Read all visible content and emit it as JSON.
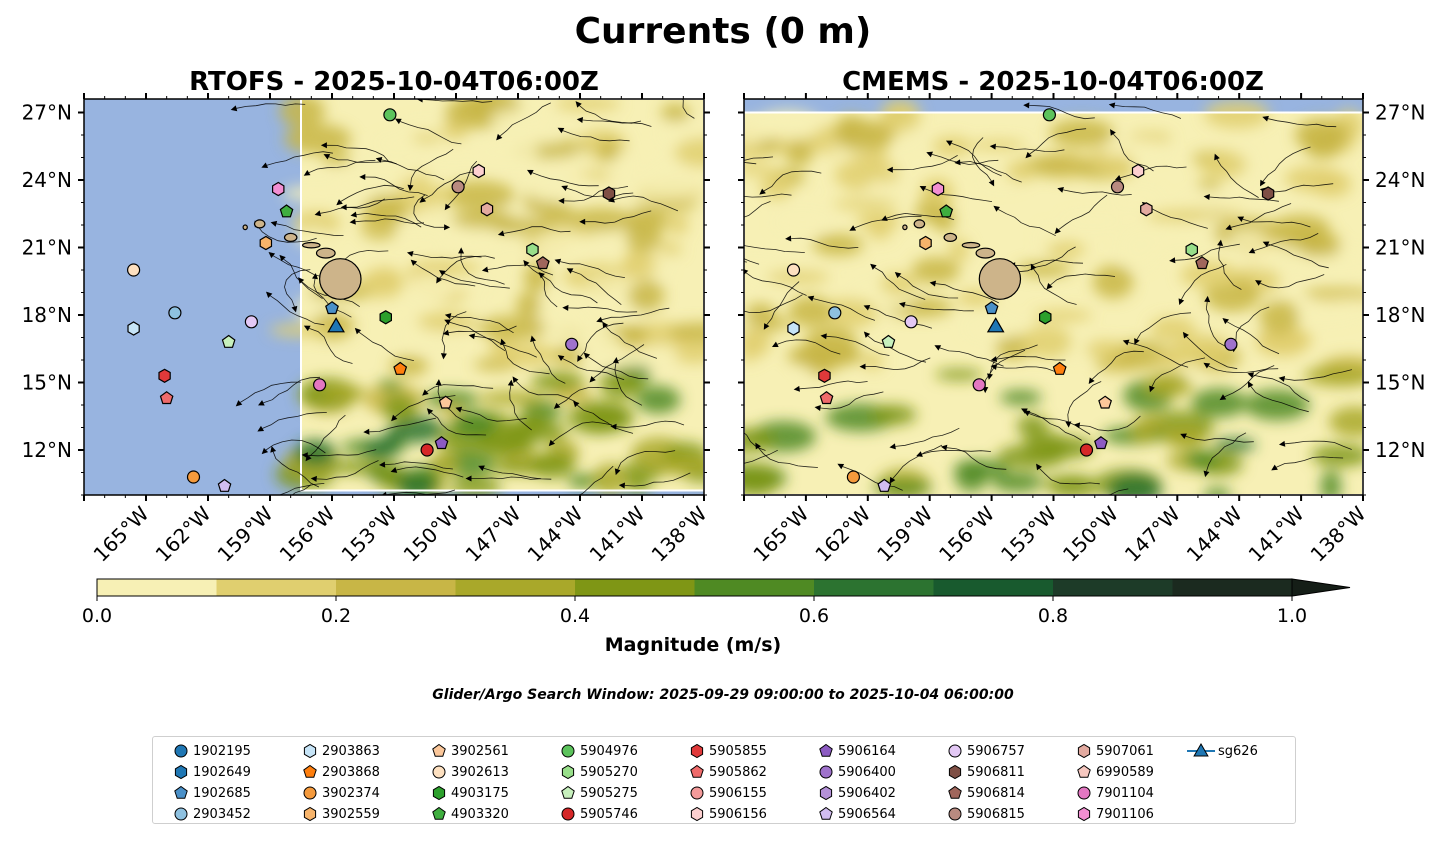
{
  "figure": {
    "suptitle": "Currents (0 m)",
    "subtitle": "Glider/Argo Search Window: 2025-09-29 09:00:00 to 2025-10-04 06:00:00"
  },
  "chart_data": {
    "type": "heatmap",
    "panels": [
      {
        "title": "RTOFS - 2025-10-04T06:00Z",
        "model_extent_lon_west": -157.5,
        "model_south_lat": 10.2
      },
      {
        "title": "CMEMS - 2025-10-04T06:00Z",
        "model_extent_lon_west": -168.0,
        "model_north_lat": 27.0
      }
    ],
    "extent": {
      "lon": [
        -168,
        -138
      ],
      "lat": [
        10.0,
        27.6
      ]
    },
    "xticks": [
      -165,
      -162,
      -159,
      -156,
      -153,
      -150,
      -147,
      -144,
      -141,
      -138
    ],
    "xtick_labels": [
      "165°W",
      "162°W",
      "159°W",
      "156°W",
      "153°W",
      "150°W",
      "147°W",
      "144°W",
      "141°W",
      "138°W"
    ],
    "yticks": [
      12,
      15,
      18,
      21,
      24,
      27
    ],
    "ytick_labels": [
      "12°N",
      "15°N",
      "18°N",
      "21°N",
      "24°N",
      "27°N"
    ],
    "colorbar": {
      "label": "Magnitude (m/s)",
      "levels": [
        0.0,
        0.1,
        0.2,
        0.3,
        0.4,
        0.5,
        0.6,
        0.7,
        0.8,
        0.9,
        1.0
      ],
      "tick_values": [
        0.0,
        0.2,
        0.4,
        0.6,
        0.8,
        1.0
      ],
      "tick_labels": [
        "0.0",
        "0.2",
        "0.4",
        "0.6",
        "0.8",
        "1.0"
      ],
      "colors": [
        "#f7f0b5",
        "#e0cf6f",
        "#c8b646",
        "#a9a82a",
        "#7f9615",
        "#4f8a23",
        "#2c7330",
        "#185a2e",
        "#1d3b28",
        "#1b2a1f"
      ],
      "extend": "max"
    },
    "land_color": "#cdb48a",
    "nodata_color": "#98b4e0",
    "markers": [
      {
        "name": "1902195",
        "lon": null,
        "lat": null
      },
      {
        "name": "1902649",
        "lon": null,
        "lat": null
      },
      {
        "name": "1902685",
        "lon": -156.0,
        "lat": 18.3
      },
      {
        "name": "2903452",
        "lon": -163.6,
        "lat": 18.1
      },
      {
        "name": "2903863",
        "lon": -165.6,
        "lat": 17.4
      },
      {
        "name": "2903868",
        "lon": -152.7,
        "lat": 15.6
      },
      {
        "name": "3902374",
        "lon": -162.7,
        "lat": 10.8
      },
      {
        "name": "3902559",
        "lon": -159.2,
        "lat": 21.2
      },
      {
        "name": "3902561",
        "lon": -150.5,
        "lat": 14.1
      },
      {
        "name": "3902613",
        "lon": -165.6,
        "lat": 20.0
      },
      {
        "name": "4903175",
        "lon": -153.4,
        "lat": 17.9
      },
      {
        "name": "4903320",
        "lon": -158.2,
        "lat": 22.6
      },
      {
        "name": "5904976",
        "lon": -153.2,
        "lat": 26.9
      },
      {
        "name": "5905270",
        "lon": -146.3,
        "lat": 20.9
      },
      {
        "name": "5905275",
        "lon": -161.0,
        "lat": 16.8
      },
      {
        "name": "5905746",
        "lon": -151.4,
        "lat": 12.0
      },
      {
        "name": "5905855",
        "lon": -164.1,
        "lat": 15.3
      },
      {
        "name": "5905862",
        "lon": -164.0,
        "lat": 14.3
      },
      {
        "name": "5906155",
        "lon": null,
        "lat": null
      },
      {
        "name": "5906156",
        "lon": -148.9,
        "lat": 24.4
      },
      {
        "name": "5906164",
        "lon": -150.7,
        "lat": 12.3
      },
      {
        "name": "5906400",
        "lon": -144.4,
        "lat": 16.7
      },
      {
        "name": "5906402",
        "lon": null,
        "lat": null
      },
      {
        "name": "5906564",
        "lon": -161.2,
        "lat": 10.4
      },
      {
        "name": "5906757",
        "lon": -159.9,
        "lat": 17.7
      },
      {
        "name": "5906811",
        "lon": -142.6,
        "lat": 23.4
      },
      {
        "name": "5906814",
        "lon": -145.8,
        "lat": 20.3
      },
      {
        "name": "5906815",
        "lon": -149.9,
        "lat": 23.7
      },
      {
        "name": "5907061",
        "lon": -148.5,
        "lat": 22.7
      },
      {
        "name": "6990589",
        "lon": null,
        "lat": null
      },
      {
        "name": "7901104",
        "lon": -156.6,
        "lat": 14.9
      },
      {
        "name": "7901106",
        "lon": -158.6,
        "lat": 23.6
      },
      {
        "name": "sg626",
        "lon": -155.8,
        "lat": 17.5
      }
    ]
  },
  "legend": {
    "columns": [
      [
        {
          "label": "1902195",
          "shape": "circle",
          "color": "#1f77b4"
        },
        {
          "label": "1902649",
          "shape": "hexagon",
          "color": "#1f77b4"
        },
        {
          "label": "1902685",
          "shape": "pentagon",
          "color": "#4a90c8"
        },
        {
          "label": "2903452",
          "shape": "circle",
          "color": "#8ec1e0"
        }
      ],
      [
        {
          "label": "2903863",
          "shape": "hexagon",
          "color": "#c6e4f7"
        },
        {
          "label": "2903868",
          "shape": "pentagon",
          "color": "#ff7f0e"
        },
        {
          "label": "3902374",
          "shape": "circle",
          "color": "#f59a3c"
        },
        {
          "label": "3902559",
          "shape": "hexagon",
          "color": "#f7b46b"
        }
      ],
      [
        {
          "label": "3902561",
          "shape": "pentagon",
          "color": "#fbc79a"
        },
        {
          "label": "3902613",
          "shape": "circle",
          "color": "#fde0c0"
        },
        {
          "label": "4903175",
          "shape": "hexagon",
          "color": "#2ca02c"
        },
        {
          "label": "4903320",
          "shape": "pentagon",
          "color": "#3fae3f"
        }
      ],
      [
        {
          "label": "5904976",
          "shape": "circle",
          "color": "#5cc35c"
        },
        {
          "label": "5905270",
          "shape": "hexagon",
          "color": "#98df8a"
        },
        {
          "label": "5905275",
          "shape": "pentagon",
          "color": "#c7f0bd"
        },
        {
          "label": "5905746",
          "shape": "circle",
          "color": "#d62728"
        }
      ],
      [
        {
          "label": "5905855",
          "shape": "hexagon",
          "color": "#e0393a"
        },
        {
          "label": "5905862",
          "shape": "pentagon",
          "color": "#ef6b6b"
        },
        {
          "label": "5906155",
          "shape": "circle",
          "color": "#f39a9a"
        },
        {
          "label": "5906156",
          "shape": "hexagon",
          "color": "#fdd0d0"
        }
      ],
      [
        {
          "label": "5906164",
          "shape": "pentagon",
          "color": "#8c5bc2"
        },
        {
          "label": "5906400",
          "shape": "circle",
          "color": "#9f72cc"
        },
        {
          "label": "5906402",
          "shape": "hexagon",
          "color": "#b491d8"
        },
        {
          "label": "5906564",
          "shape": "pentagon",
          "color": "#d2bdf0"
        }
      ],
      [
        {
          "label": "5906757",
          "shape": "circle",
          "color": "#e3c8f5"
        },
        {
          "label": "5906811",
          "shape": "hexagon",
          "color": "#7f4f45"
        },
        {
          "label": "5906814",
          "shape": "pentagon",
          "color": "#a0665c"
        },
        {
          "label": "5906815",
          "shape": "circle",
          "color": "#b98a80"
        }
      ],
      [
        {
          "label": "5907061",
          "shape": "hexagon",
          "color": "#e3aaa0"
        },
        {
          "label": "6990589",
          "shape": "pentagon",
          "color": "#f7c8c0"
        },
        {
          "label": "7901104",
          "shape": "circle",
          "color": "#e377c2"
        },
        {
          "label": "7901106",
          "shape": "hexagon",
          "color": "#f28fd2"
        }
      ],
      [
        {
          "label": "sg626",
          "shape": "triangle",
          "color": "#1f77b4"
        }
      ]
    ]
  }
}
